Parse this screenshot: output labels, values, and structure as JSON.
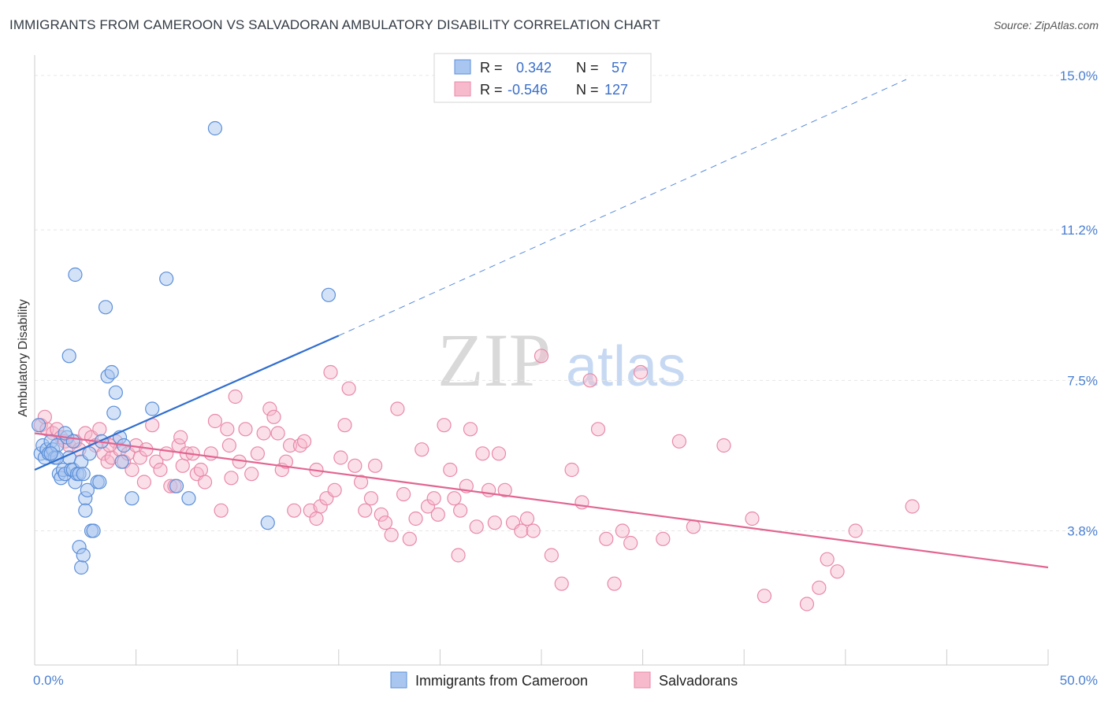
{
  "title": "IMMIGRANTS FROM CAMEROON VS SALVADORAN AMBULATORY DISABILITY CORRELATION CHART",
  "source": "Source: ZipAtlas.com",
  "watermark": {
    "zip": "ZIP",
    "atlas": "atlas"
  },
  "legend": {
    "rows": [
      {
        "r_label": "R =",
        "r_value": "0.342",
        "n_label": "N =",
        "n_value": "57"
      },
      {
        "r_label": "R =",
        "r_value": "-0.546",
        "n_label": "N =",
        "n_value": "127"
      }
    ]
  },
  "colors": {
    "series1_fill": "#a9c6f0",
    "series1_stroke": "#5b8fd9",
    "series1_line": "#2f6ecf",
    "series2_fill": "#f7b9cc",
    "series2_stroke": "#e889a8",
    "series2_line": "#e26592",
    "grid": "#e6e6e6",
    "tick_label": "#4a7fd0"
  },
  "chart_data": {
    "type": "scatter",
    "title": "IMMIGRANTS FROM CAMEROON VS SALVADORAN AMBULATORY DISABILITY CORRELATION CHART",
    "xlabel": "",
    "ylabel": "Ambulatory Disability",
    "xlim": [
      0,
      50
    ],
    "ylim": [
      0.5,
      15.5
    ],
    "x_tick_labels": [
      "0.0%",
      "50.0%"
    ],
    "y_ticks": [
      3.8,
      7.5,
      11.2,
      15.0
    ],
    "y_tick_labels": [
      "3.8%",
      "7.5%",
      "11.2%",
      "15.0%"
    ],
    "grid": true,
    "legend_position": "top-center",
    "series": [
      {
        "name": "Immigrants from Cameroon",
        "r": 0.342,
        "n": 57,
        "trend": {
          "x0": 0.0,
          "y0": 5.3,
          "x1": 15.0,
          "y1": 8.6,
          "dash_to_x": 43.0,
          "dash_to_y": 14.9
        },
        "points": [
          [
            0.2,
            6.4
          ],
          [
            0.3,
            5.7
          ],
          [
            0.4,
            5.9
          ],
          [
            0.5,
            5.6
          ],
          [
            0.6,
            5.8
          ],
          [
            0.7,
            5.7
          ],
          [
            0.8,
            6.0
          ],
          [
            0.9,
            5.8
          ],
          [
            1.0,
            5.6
          ],
          [
            1.1,
            5.9
          ],
          [
            1.2,
            5.2
          ],
          [
            1.3,
            5.1
          ],
          [
            1.4,
            5.3
          ],
          [
            1.5,
            5.2
          ],
          [
            1.6,
            6.1
          ],
          [
            1.7,
            5.6
          ],
          [
            1.8,
            5.3
          ],
          [
            1.9,
            5.3
          ],
          [
            2.0,
            5.0
          ],
          [
            2.1,
            5.2
          ],
          [
            2.2,
            5.2
          ],
          [
            2.3,
            5.5
          ],
          [
            2.4,
            5.2
          ],
          [
            1.7,
            8.1
          ],
          [
            2.0,
            10.1
          ],
          [
            2.5,
            4.6
          ],
          [
            2.5,
            4.3
          ],
          [
            2.6,
            4.8
          ],
          [
            2.8,
            3.8
          ],
          [
            2.9,
            3.8
          ],
          [
            2.2,
            3.4
          ],
          [
            2.3,
            2.9
          ],
          [
            2.4,
            3.2
          ],
          [
            3.1,
            5.0
          ],
          [
            3.2,
            5.0
          ],
          [
            3.5,
            9.3
          ],
          [
            3.6,
            7.6
          ],
          [
            3.8,
            7.7
          ],
          [
            3.9,
            6.7
          ],
          [
            4.0,
            7.2
          ],
          [
            4.2,
            6.1
          ],
          [
            4.3,
            5.5
          ],
          [
            4.4,
            5.9
          ],
          [
            4.8,
            4.6
          ],
          [
            5.8,
            6.8
          ],
          [
            6.5,
            10.0
          ],
          [
            7.0,
            4.9
          ],
          [
            7.6,
            4.6
          ],
          [
            8.9,
            13.7
          ],
          [
            11.5,
            4.0
          ],
          [
            14.5,
            9.6
          ],
          [
            1.1,
            5.6
          ],
          [
            0.8,
            5.7
          ],
          [
            1.5,
            6.2
          ],
          [
            1.9,
            6.0
          ],
          [
            2.7,
            5.7
          ],
          [
            3.3,
            6.0
          ]
        ]
      },
      {
        "name": "Salvadorans",
        "r": -0.546,
        "n": 127,
        "trend": {
          "x0": 0.0,
          "y0": 6.2,
          "x1": 50.0,
          "y1": 2.9
        },
        "points": [
          [
            0.3,
            6.4
          ],
          [
            0.6,
            6.3
          ],
          [
            0.9,
            6.2
          ],
          [
            1.1,
            6.3
          ],
          [
            1.3,
            6.1
          ],
          [
            1.5,
            6.0
          ],
          [
            1.7,
            5.9
          ],
          [
            2.0,
            6.0
          ],
          [
            2.2,
            5.8
          ],
          [
            2.5,
            6.2
          ],
          [
            2.8,
            6.1
          ],
          [
            3.0,
            5.9
          ],
          [
            3.2,
            6.3
          ],
          [
            3.4,
            5.7
          ],
          [
            3.6,
            5.5
          ],
          [
            3.8,
            5.6
          ],
          [
            4.0,
            6.0
          ],
          [
            4.2,
            5.8
          ],
          [
            4.4,
            5.5
          ],
          [
            4.6,
            5.7
          ],
          [
            4.8,
            5.3
          ],
          [
            5.0,
            5.9
          ],
          [
            5.2,
            5.6
          ],
          [
            5.5,
            5.8
          ],
          [
            5.8,
            6.4
          ],
          [
            6.0,
            5.5
          ],
          [
            6.2,
            5.3
          ],
          [
            6.5,
            5.7
          ],
          [
            6.7,
            4.9
          ],
          [
            6.9,
            4.9
          ],
          [
            7.1,
            5.9
          ],
          [
            7.3,
            5.4
          ],
          [
            7.5,
            5.7
          ],
          [
            7.8,
            5.7
          ],
          [
            8.0,
            5.2
          ],
          [
            8.2,
            5.3
          ],
          [
            8.4,
            5.0
          ],
          [
            8.7,
            5.7
          ],
          [
            8.9,
            6.5
          ],
          [
            9.2,
            4.3
          ],
          [
            9.5,
            6.3
          ],
          [
            9.7,
            5.1
          ],
          [
            9.9,
            7.1
          ],
          [
            10.1,
            5.5
          ],
          [
            10.4,
            6.3
          ],
          [
            10.7,
            5.2
          ],
          [
            11.0,
            5.7
          ],
          [
            11.3,
            6.2
          ],
          [
            11.6,
            6.8
          ],
          [
            11.8,
            6.6
          ],
          [
            12.0,
            6.2
          ],
          [
            12.2,
            5.3
          ],
          [
            12.4,
            5.5
          ],
          [
            12.6,
            5.9
          ],
          [
            12.8,
            4.3
          ],
          [
            13.1,
            5.9
          ],
          [
            13.3,
            6.0
          ],
          [
            13.6,
            4.3
          ],
          [
            13.9,
            5.3
          ],
          [
            14.1,
            4.4
          ],
          [
            14.4,
            4.6
          ],
          [
            14.6,
            7.7
          ],
          [
            14.8,
            4.8
          ],
          [
            15.1,
            5.6
          ],
          [
            15.3,
            6.4
          ],
          [
            15.5,
            7.3
          ],
          [
            15.8,
            5.4
          ],
          [
            16.1,
            5.0
          ],
          [
            16.3,
            4.3
          ],
          [
            16.6,
            4.6
          ],
          [
            16.8,
            5.4
          ],
          [
            17.1,
            4.2
          ],
          [
            17.3,
            4.0
          ],
          [
            17.6,
            3.7
          ],
          [
            17.9,
            6.8
          ],
          [
            18.2,
            4.7
          ],
          [
            18.5,
            3.6
          ],
          [
            18.8,
            4.1
          ],
          [
            19.1,
            5.8
          ],
          [
            19.4,
            4.4
          ],
          [
            19.7,
            4.6
          ],
          [
            19.9,
            4.2
          ],
          [
            20.2,
            6.4
          ],
          [
            20.5,
            5.3
          ],
          [
            20.7,
            4.6
          ],
          [
            21.0,
            4.3
          ],
          [
            21.3,
            4.9
          ],
          [
            21.5,
            6.3
          ],
          [
            21.8,
            3.9
          ],
          [
            22.1,
            5.7
          ],
          [
            22.4,
            4.8
          ],
          [
            22.7,
            4.0
          ],
          [
            22.9,
            5.7
          ],
          [
            23.2,
            4.8
          ],
          [
            23.6,
            4.0
          ],
          [
            24.0,
            3.8
          ],
          [
            24.3,
            4.1
          ],
          [
            24.6,
            3.8
          ],
          [
            25.0,
            8.1
          ],
          [
            25.5,
            3.2
          ],
          [
            26.0,
            2.5
          ],
          [
            26.5,
            5.3
          ],
          [
            27.0,
            4.5
          ],
          [
            27.4,
            7.5
          ],
          [
            27.8,
            6.3
          ],
          [
            28.2,
            3.6
          ],
          [
            28.6,
            2.5
          ],
          [
            29.0,
            3.8
          ],
          [
            29.4,
            3.5
          ],
          [
            29.9,
            7.7
          ],
          [
            31.0,
            3.6
          ],
          [
            31.8,
            6.0
          ],
          [
            32.5,
            3.9
          ],
          [
            34.0,
            5.9
          ],
          [
            35.4,
            4.1
          ],
          [
            36.0,
            2.2
          ],
          [
            38.1,
            2.0
          ],
          [
            38.7,
            2.4
          ],
          [
            39.1,
            3.1
          ],
          [
            39.6,
            2.8
          ],
          [
            40.5,
            3.8
          ],
          [
            43.3,
            4.4
          ],
          [
            20.9,
            3.2
          ],
          [
            13.9,
            4.1
          ],
          [
            7.2,
            6.1
          ],
          [
            5.4,
            5.0
          ],
          [
            9.6,
            5.9
          ],
          [
            3.7,
            5.9
          ],
          [
            0.5,
            6.6
          ]
        ]
      }
    ]
  },
  "bottom_legend": [
    {
      "label": "Immigrants from Cameroon"
    },
    {
      "label": "Salvadorans"
    }
  ]
}
